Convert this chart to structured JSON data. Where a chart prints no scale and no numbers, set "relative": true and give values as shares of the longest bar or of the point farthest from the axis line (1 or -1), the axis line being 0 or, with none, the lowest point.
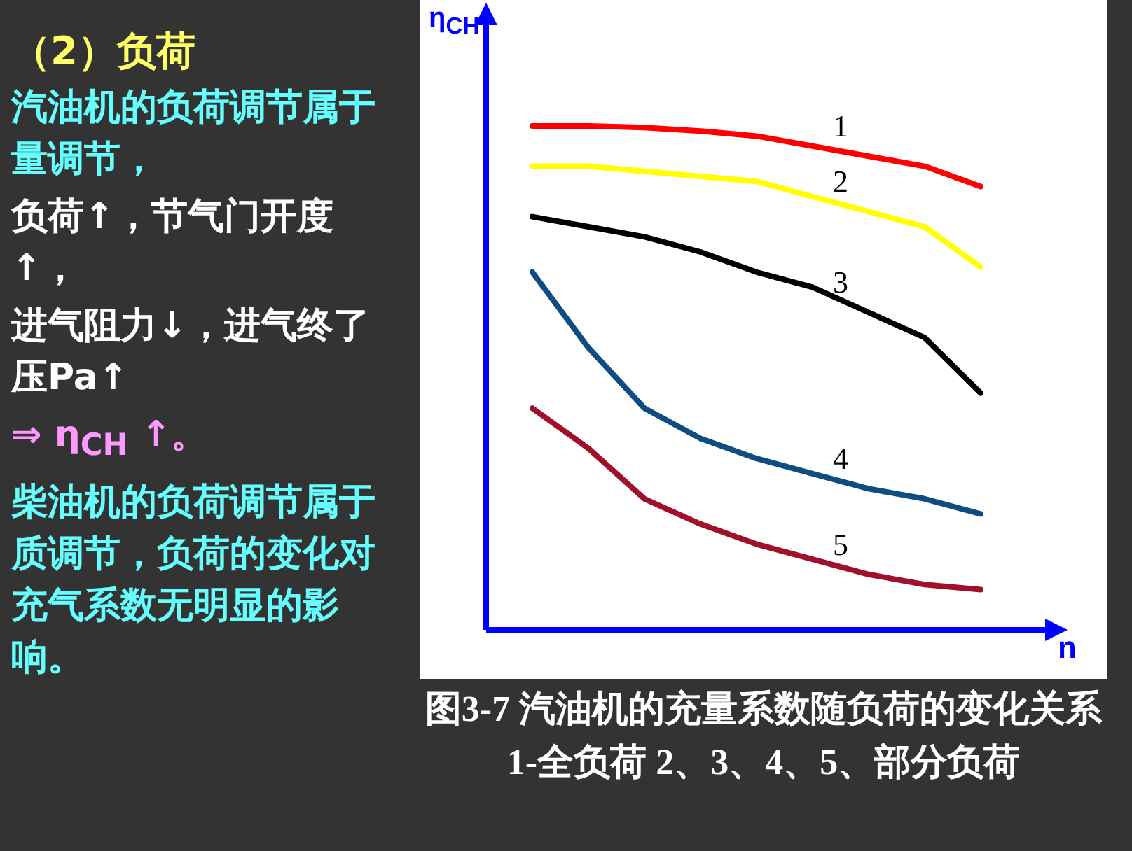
{
  "chart_data": {
    "type": "line",
    "title": "（2）负荷",
    "xlabel": "n",
    "ylabel": "η$_{CH}$",
    "relative": true,
    "marker": "none",
    "line_style": "solid",
    "categories": [
      null,
      null,
      null,
      null,
      null,
      null,
      null,
      null,
      null
    ],
    "series": [
      {
        "name": "1",
        "color": "#ff0000",
        "values": [
          1,
          1,
          0.997,
          0.99,
          0.98,
          0.96,
          0.94,
          0.92,
          0.88
        ]
      },
      {
        "name": "2",
        "color": "#ffff00",
        "values": [
          0.92,
          0.92,
          0.91,
          0.9,
          0.89,
          0.86,
          0.83,
          0.8,
          0.72
        ]
      },
      {
        "name": "3",
        "color": "#000000",
        "values": [
          0.82,
          0.8,
          0.78,
          0.75,
          0.71,
          0.68,
          0.63,
          0.58,
          0.47
        ]
      },
      {
        "name": "4",
        "color": "#0f4c81",
        "values": [
          0.71,
          0.56,
          0.44,
          0.38,
          0.34,
          0.31,
          0.28,
          0.26,
          0.23
        ]
      },
      {
        "name": "5",
        "color": "#a0102a",
        "values": [
          0.44,
          0.36,
          0.26,
          0.21,
          0.17,
          0.14,
          0.11,
          0.09,
          0.08
        ]
      }
    ],
    "annotations": [
      "汽油机的负荷调节属于量调节，",
      "负荷↑，节气门开度↑，",
      "进气阻力↓，进气终了压Pa↑",
      "⇒ η$_{CH}$ ↑。",
      "柴油机的负荷调节属于质调节，负荷的变化对充气系数无明显的影响。",
      "图3-7  汽油机的充量系数随负荷的变化关系",
      "1-全负荷  2、3、4、5、部分负荷"
    ]
  }
}
